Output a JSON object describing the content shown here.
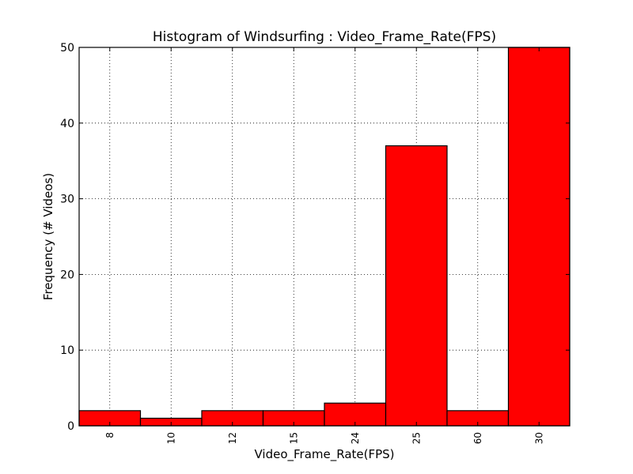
{
  "chart_data": {
    "type": "bar",
    "title": "Histogram of Windsurfing : Video_Frame_Rate(FPS)",
    "xlabel": "Video_Frame_Rate(FPS)",
    "ylabel": "Frequency (# Videos)",
    "categories": [
      "8",
      "10",
      "12",
      "15",
      "24",
      "25",
      "60",
      "30"
    ],
    "values": [
      2,
      1,
      2,
      2,
      3,
      37,
      2,
      50
    ],
    "ylim": [
      0,
      50
    ],
    "yticks": [
      0,
      10,
      20,
      30,
      40,
      50
    ],
    "grid": true,
    "bar_color": "#ff0000",
    "edge_color": "#000000"
  }
}
